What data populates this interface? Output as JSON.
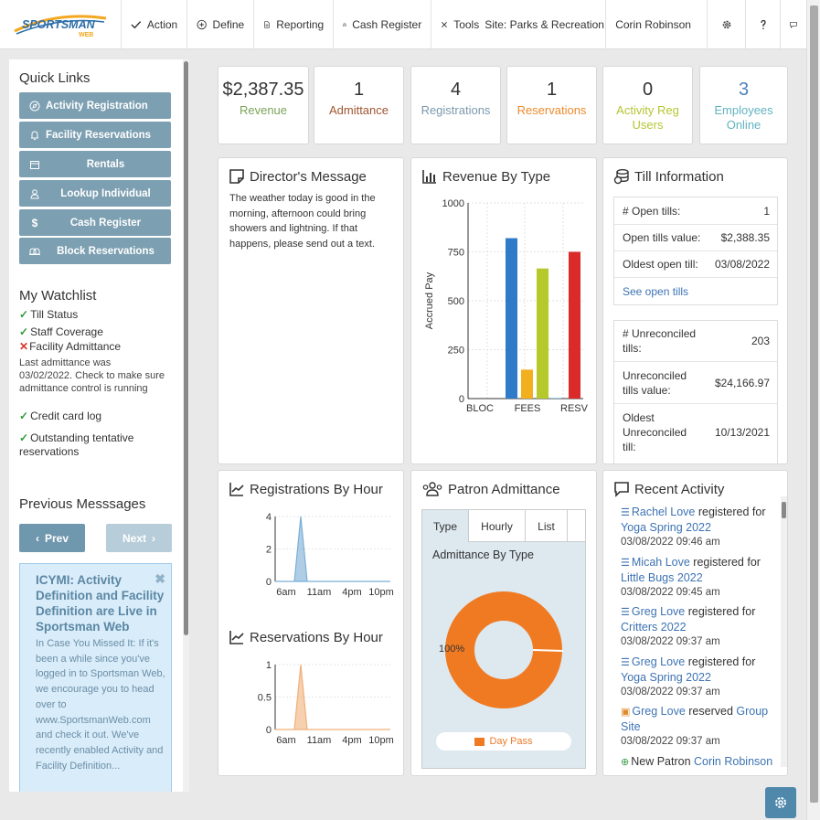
{
  "brand": {
    "logo_text": "SPORTSMAN",
    "logo_sub": "WEB"
  },
  "nav": {
    "action": "Action",
    "define": "Define",
    "reporting": "Reporting",
    "cash_register": "Cash Register",
    "tools": "Tools",
    "site": "Site: Parks & Recreation",
    "user": "Corin Robinson"
  },
  "sidebar": {
    "quick_links_title": "Quick Links",
    "quick_links": [
      {
        "label": "Activity Registration",
        "icon": "compass-icon"
      },
      {
        "label": "Facility Reservations",
        "icon": "bell-icon"
      },
      {
        "label": "Rentals",
        "icon": "calendar-icon"
      },
      {
        "label": "Lookup Individual",
        "icon": "user-icon"
      },
      {
        "label": "Cash Register",
        "icon": "dollar-icon"
      },
      {
        "label": "Block Reservations",
        "icon": "bells-icon"
      }
    ],
    "watchlist_title": "My Watchlist",
    "watchlist": [
      {
        "label": "Till Status",
        "status": "ok"
      },
      {
        "label": "Staff Coverage",
        "status": "ok"
      },
      {
        "label": "Facility Admittance",
        "status": "error",
        "note": "Last admittance was 03/02/2022. Check to make sure admittance control is running"
      },
      {
        "label": "Credit card log",
        "status": "ok"
      },
      {
        "label": "Outstanding tentative reservations",
        "status": "ok"
      }
    ],
    "previous_messages_title": "Previous Messsages",
    "prev_label": "Prev",
    "next_label": "Next",
    "message": {
      "title": "ICYMI: Activity Definition and Facility Definition are Live in Sportsman Web",
      "body": "In Case You Missed It: If it's been a while since you've logged in to Sportsman Web, we encourage you to head over to www.SportsmanWeb.com and check it out. We've recently enabled Activity and Facility Definition..."
    }
  },
  "stats": [
    {
      "value": "$2,387.35",
      "label": "Revenue",
      "color": "#7aa35a"
    },
    {
      "value": "1",
      "label": "Admittance",
      "color": "#a0552f"
    },
    {
      "value": "4",
      "label": "Registrations",
      "color": "#7a98ad"
    },
    {
      "value": "1",
      "label": "Reservations",
      "color": "#ec8a2c"
    },
    {
      "value": "0",
      "label": "Activity Reg Users",
      "color": "#b6c532"
    },
    {
      "value": "3",
      "label": "Employees Online",
      "color": "#62b3c0",
      "value_color": "#4d83b8"
    }
  ],
  "directors_message": {
    "title": "Director's Message",
    "body": "The weather today is good in the morning, afternoon could bring showers and lightning. If that happens, please send out a text."
  },
  "revenue_by_type": {
    "title": "Revenue By Type",
    "chart_data": {
      "type": "bar",
      "ylabel": "Accrued Pay",
      "ylim": [
        0,
        1000
      ],
      "yticks": [
        0,
        250,
        500,
        750,
        1000
      ],
      "xtick_labels": [
        "BLOC",
        "FEES",
        "RESV"
      ],
      "grid": true,
      "series": [
        {
          "values": [
            820
          ],
          "color": "#2f7bc7"
        },
        {
          "values": [
            148
          ],
          "color": "#f2b01e"
        },
        {
          "values": [
            665
          ],
          "color": "#b6c92a"
        },
        {
          "values": [
            3
          ],
          "color": "#61b8d4"
        },
        {
          "values": [
            750
          ],
          "color": "#da2a2a"
        }
      ]
    }
  },
  "till_info": {
    "title": "Till Information",
    "open": [
      {
        "label": "# Open tills:",
        "value": "1"
      },
      {
        "label": "Open tills value:",
        "value": "$2,388.35"
      },
      {
        "label": "Oldest open till:",
        "value": "03/08/2022"
      }
    ],
    "see_open_tills": "See open tills",
    "unreconciled": [
      {
        "label": "# Unreconciled tills:",
        "value": "203"
      },
      {
        "label": "Unreconciled tills value:",
        "value": "$24,166.97"
      },
      {
        "label": "Oldest Unreconciled till:",
        "value": "10/13/2021"
      }
    ]
  },
  "registrations_by_hour": {
    "title": "Registrations By Hour",
    "chart_data": {
      "type": "area",
      "x_tick_labels": [
        "6am",
        "11am",
        "4pm",
        "10pm"
      ],
      "yticks": [
        0,
        2,
        4
      ],
      "ylim": [
        0,
        4
      ],
      "x": [
        5,
        8,
        9,
        10,
        23
      ],
      "y": [
        0,
        0,
        4,
        0,
        0
      ],
      "color": "#7aaed6"
    }
  },
  "reservations_by_hour": {
    "title": "Reservations By Hour",
    "chart_data": {
      "type": "area",
      "x_tick_labels": [
        "6am",
        "11am",
        "4pm",
        "10pm"
      ],
      "yticks": [
        0,
        0.5,
        1
      ],
      "ylim": [
        0,
        1
      ],
      "x": [
        5,
        8,
        9,
        10,
        23
      ],
      "y": [
        0,
        0,
        1,
        0,
        0
      ],
      "color": "#f0b07a"
    }
  },
  "patron_admittance": {
    "title": "Patron Admittance",
    "tabs": [
      "Type",
      "Hourly",
      "List"
    ],
    "active_tab": "Type",
    "subtitle": "Admittance By Type",
    "chart_data": {
      "type": "pie",
      "labels": [
        "Day Pass"
      ],
      "values": [
        100
      ],
      "percent_label": "100%",
      "color": "#f07a22",
      "legend": [
        "Day Pass"
      ]
    }
  },
  "recent_activity": {
    "title": "Recent Activity",
    "items": [
      {
        "name": "Rachel Love",
        "action": "registered for",
        "target": "Yoga Spring 2022",
        "time": "03/08/2022 09:46 am",
        "icon": "list-icon"
      },
      {
        "name": "Micah Love",
        "action": "registered for",
        "target": "Little Bugs 2022",
        "time": "03/08/2022 09:45 am",
        "icon": "list-icon"
      },
      {
        "name": "Greg Love",
        "action": "registered for",
        "target": "Critters 2022",
        "time": "03/08/2022 09:37 am",
        "icon": "list-icon"
      },
      {
        "name": "Greg Love",
        "action": "registered for",
        "target": "Yoga Spring 2022",
        "time": "03/08/2022 09:37 am",
        "icon": "list-icon"
      },
      {
        "name": "Greg Love",
        "action": "reserved",
        "target": "Group Site",
        "time": "03/08/2022 09:37 am",
        "icon": "calendar-check-icon"
      }
    ],
    "new_patron_label": "New Patron",
    "new_patron_name": "Corin Robinson"
  }
}
